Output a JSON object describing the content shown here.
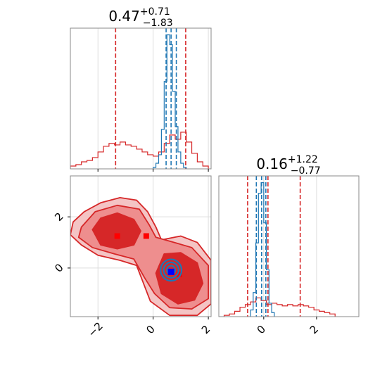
{
  "chart_data": [
    {
      "type": "histogram",
      "panel": "top-left",
      "title": {
        "base": "0.47",
        "sup": "+0.71",
        "sub": "−1.83"
      },
      "xlim": [
        -3.0,
        2.1
      ],
      "grid": true,
      "show_x_tick_labels": false,
      "series": [
        {
          "name": "",
          "color": "#d62728",
          "bin_edges": [
            -3.0,
            -2.8,
            -2.6,
            -2.4,
            -2.2,
            -2.0,
            -1.8,
            -1.6,
            -1.4,
            -1.2,
            -1.0,
            -0.8,
            -0.6,
            -0.4,
            -0.2,
            0.0,
            0.2,
            0.4,
            0.6,
            0.8,
            1.0,
            1.2,
            1.4,
            1.6,
            1.8,
            2.0
          ],
          "counts": [
            0.02,
            0.03,
            0.05,
            0.06,
            0.08,
            0.12,
            0.16,
            0.18,
            0.17,
            0.19,
            0.17,
            0.16,
            0.14,
            0.12,
            0.1,
            0.09,
            0.12,
            0.18,
            0.24,
            0.21,
            0.26,
            0.19,
            0.11,
            0.05,
            0.02
          ],
          "quantile_lines": [
            -1.36,
            1.18
          ]
        },
        {
          "name": "",
          "color": "#1f77b4",
          "bin_edges": [
            0.0,
            0.1,
            0.2,
            0.3,
            0.4,
            0.5,
            0.6,
            0.7,
            0.8,
            0.9,
            1.0,
            1.1,
            1.2
          ],
          "counts": [
            0.01,
            0.04,
            0.1,
            0.28,
            0.62,
            0.95,
            0.88,
            0.55,
            0.3,
            0.12,
            0.04,
            0.01
          ],
          "quantile_lines": [
            0.47,
            0.65,
            0.84
          ]
        }
      ]
    },
    {
      "type": "histogram",
      "panel": "bottom-right",
      "title": {
        "base": "0.16",
        "sup": "+1.22",
        "sub": "−0.77"
      },
      "xlim": [
        -1.7,
        3.6
      ],
      "grid": true,
      "xticks": [
        0,
        2
      ],
      "xtick_labels": [
        "0",
        "2"
      ],
      "series": [
        {
          "name": "",
          "color": "#d62728",
          "bin_edges": [
            -1.5,
            -1.3,
            -1.1,
            -0.9,
            -0.7,
            -0.5,
            -0.3,
            -0.1,
            0.1,
            0.3,
            0.5,
            0.7,
            0.9,
            1.1,
            1.3,
            1.5,
            1.7,
            1.9,
            2.1,
            2.3,
            2.5,
            2.7
          ],
          "counts": [
            0.01,
            0.02,
            0.04,
            0.07,
            0.09,
            0.11,
            0.14,
            0.12,
            0.09,
            0.1,
            0.09,
            0.08,
            0.09,
            0.08,
            0.09,
            0.08,
            0.07,
            0.05,
            0.04,
            0.03,
            0.02
          ],
          "quantile_lines": [
            -0.61,
            0.16,
            1.38
          ]
        },
        {
          "name": "",
          "color": "#1f77b4",
          "bin_edges": [
            -0.5,
            -0.4,
            -0.3,
            -0.2,
            -0.1,
            0.0,
            0.1,
            0.2,
            0.3,
            0.4
          ],
          "counts": [
            0.05,
            0.18,
            0.55,
            0.92,
            1.0,
            0.7,
            0.35,
            0.1,
            0.03
          ],
          "quantile_lines": [
            -0.28,
            -0.08,
            0.08
          ]
        }
      ]
    },
    {
      "type": "contour",
      "panel": "bottom-left",
      "xlim": [
        -3.0,
        2.1
      ],
      "ylim": [
        -1.9,
        3.6
      ],
      "grid": true,
      "xticks": [
        -2,
        0,
        2
      ],
      "xtick_labels": [
        "−2",
        "0",
        "2"
      ],
      "yticks": [
        0,
        2
      ],
      "ytick_labels": [
        "0",
        "2"
      ],
      "series": [
        {
          "name": "",
          "color": "#d62728",
          "levels": [
            {
              "fill": "#f4c4c4",
              "outline": [
                [
                  -2.9,
                  1.8
                ],
                [
                  -2.5,
                  2.2
                ],
                [
                  -1.9,
                  2.55
                ],
                [
                  -1.2,
                  2.75
                ],
                [
                  -0.6,
                  2.65
                ],
                [
                  -0.2,
                  2.2
                ],
                [
                  0.1,
                  1.6
                ],
                [
                  0.3,
                  1.1
                ],
                [
                  1.0,
                  1.25
                ],
                [
                  1.6,
                  1.0
                ],
                [
                  2.1,
                  0.3
                ],
                [
                  2.1,
                  -1.4
                ],
                [
                  1.6,
                  -1.85
                ],
                [
                  0.6,
                  -1.85
                ],
                [
                  -0.1,
                  -1.3
                ],
                [
                  -0.35,
                  -0.6
                ],
                [
                  -0.6,
                  0.1
                ],
                [
                  -1.2,
                  0.3
                ],
                [
                  -2.0,
                  0.5
                ],
                [
                  -2.6,
                  0.9
                ],
                [
                  -3.0,
                  1.3
                ]
              ]
            },
            {
              "fill": "#ee8e8e",
              "outline": [
                [
                  -2.6,
                  1.6
                ],
                [
                  -2.1,
                  2.2
                ],
                [
                  -1.3,
                  2.45
                ],
                [
                  -0.5,
                  2.3
                ],
                [
                  -0.15,
                  1.7
                ],
                [
                  0.1,
                  1.2
                ],
                [
                  0.6,
                  1.05
                ],
                [
                  1.4,
                  0.8
                ],
                [
                  2.0,
                  0.1
                ],
                [
                  2.0,
                  -1.2
                ],
                [
                  1.4,
                  -1.6
                ],
                [
                  0.6,
                  -1.55
                ],
                [
                  0.05,
                  -1.0
                ],
                [
                  -0.3,
                  -0.4
                ],
                [
                  -0.7,
                  0.35
                ],
                [
                  -1.4,
                  0.55
                ],
                [
                  -2.2,
                  0.8
                ],
                [
                  -2.7,
                  1.2
                ]
              ]
            },
            {
              "fill": "#d62728",
              "outline": [
                [
                  -2.2,
                  1.5
                ],
                [
                  -1.9,
                  1.95
                ],
                [
                  -1.3,
                  2.15
                ],
                [
                  -0.7,
                  1.9
                ],
                [
                  -0.45,
                  1.45
                ],
                [
                  -0.7,
                  0.9
                ],
                [
                  -1.3,
                  0.75
                ],
                [
                  -1.9,
                  0.9
                ]
              ]
            },
            {
              "fill": "#d62728",
              "outline": [
                [
                  0.1,
                  -0.2
                ],
                [
                  0.4,
                  0.55
                ],
                [
                  1.0,
                  0.6
                ],
                [
                  1.6,
                  0.2
                ],
                [
                  1.8,
                  -0.6
                ],
                [
                  1.5,
                  -1.25
                ],
                [
                  0.9,
                  -1.4
                ],
                [
                  0.3,
                  -1.0
                ]
              ]
            }
          ],
          "markers": [
            [
              -1.3,
              1.25
            ],
            [
              -0.25,
              1.25
            ],
            [
              0.95,
              -0.25
            ]
          ]
        },
        {
          "name": "",
          "color": "#1f77b4",
          "rings": [
            {
              "cx": 0.65,
              "cy": -0.08,
              "rx": 0.38,
              "ry": 0.42
            },
            {
              "cx": 0.65,
              "cy": -0.08,
              "rx": 0.27,
              "ry": 0.3
            },
            {
              "cx": 0.65,
              "cy": -0.08,
              "rx": 0.15,
              "ry": 0.17
            }
          ],
          "markers": [
            [
              0.65,
              -0.15
            ]
          ]
        }
      ]
    }
  ]
}
